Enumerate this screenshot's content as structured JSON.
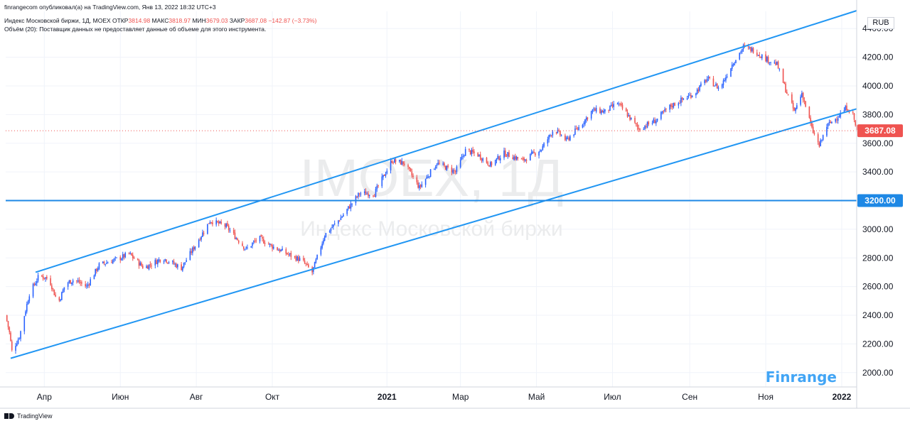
{
  "header": {
    "published": "finrangecom опубликовал(а) на TradingView.com, Янв 13, 2022 18:32 UTC+3",
    "symbol": "Индекс Московской биржи, 1Д, MOEX",
    "open_label": "ОТКР",
    "open_value": "3814.98",
    "high_label": "МАКС",
    "high_value": "3818.97",
    "low_label": "МИН",
    "low_value": "3679.03",
    "close_label": "ЗАКР",
    "close_value": "3687.08",
    "change": "−142.87 (−3.73%)",
    "volume_note": "Объём (20): Поставщик данных не предоставляет данные об объеме для этого инструмента."
  },
  "currency": "RUB",
  "watermark": {
    "ticker": "IMOEX, 1Д",
    "name": "Индекс Московской биржи"
  },
  "brand": "Finrange",
  "footer": "TradingView",
  "colors": {
    "up": "#2962ff",
    "down": "#ef5350",
    "line": "#2196f3",
    "hline": "#1e88e5",
    "price": "#ef5350"
  },
  "chart_data": {
    "type": "candlestick",
    "title": "Индекс Московской биржи, 1Д, MOEX",
    "ylim": [
      1900,
      4520
    ],
    "y_ticks": [
      2000,
      2200,
      2400,
      2600,
      2800,
      3000,
      3200,
      3400,
      3600,
      3800,
      4000,
      4200,
      4400
    ],
    "x_range": [
      "2020-03-01",
      "2022-01-13"
    ],
    "x_ticks": [
      {
        "label": "Апр",
        "date": "2020-04-01"
      },
      {
        "label": "Июн",
        "date": "2020-06-01"
      },
      {
        "label": "Авг",
        "date": "2020-08-01"
      },
      {
        "label": "Окт",
        "date": "2020-10-01"
      },
      {
        "label": "2021",
        "date": "2021-01-01"
      },
      {
        "label": "Мар",
        "date": "2021-03-01"
      },
      {
        "label": "Май",
        "date": "2021-05-01"
      },
      {
        "label": "Июл",
        "date": "2021-07-01"
      },
      {
        "label": "Сен",
        "date": "2021-09-01"
      },
      {
        "label": "Ноя",
        "date": "2021-11-01"
      },
      {
        "label": "2022",
        "date": "2022-01-01"
      }
    ],
    "last_price": 3687.08,
    "last_price_label": "3687.08",
    "horizontal_level": 3200,
    "horizontal_level_label": "3200.00",
    "trend_channel": {
      "upper": [
        {
          "date": "2020-03-25",
          "value": 2700
        },
        {
          "date": "2022-01-13",
          "value": 4525
        }
      ],
      "lower": [
        {
          "date": "2020-03-05",
          "value": 2100
        },
        {
          "date": "2022-01-13",
          "value": 3840
        }
      ]
    },
    "price_path": [
      {
        "date": "2020-03-01",
        "value": 2400
      },
      {
        "date": "2020-03-04",
        "value": 2280
      },
      {
        "date": "2020-03-06",
        "value": 2150
      },
      {
        "date": "2020-03-12",
        "value": 2250
      },
      {
        "date": "2020-03-16",
        "value": 2400
      },
      {
        "date": "2020-03-20",
        "value": 2550
      },
      {
        "date": "2020-03-28",
        "value": 2680
      },
      {
        "date": "2020-04-05",
        "value": 2650
      },
      {
        "date": "2020-04-12",
        "value": 2480
      },
      {
        "date": "2020-04-18",
        "value": 2620
      },
      {
        "date": "2020-04-25",
        "value": 2650
      },
      {
        "date": "2020-05-05",
        "value": 2600
      },
      {
        "date": "2020-05-15",
        "value": 2750
      },
      {
        "date": "2020-06-01",
        "value": 2800
      },
      {
        "date": "2020-06-08",
        "value": 2830
      },
      {
        "date": "2020-06-20",
        "value": 2730
      },
      {
        "date": "2020-07-05",
        "value": 2800
      },
      {
        "date": "2020-07-20",
        "value": 2730
      },
      {
        "date": "2020-08-01",
        "value": 2900
      },
      {
        "date": "2020-08-12",
        "value": 3060
      },
      {
        "date": "2020-08-25",
        "value": 3020
      },
      {
        "date": "2020-09-10",
        "value": 2860
      },
      {
        "date": "2020-09-20",
        "value": 2940
      },
      {
        "date": "2020-10-01",
        "value": 2880
      },
      {
        "date": "2020-10-15",
        "value": 2820
      },
      {
        "date": "2020-10-25",
        "value": 2780
      },
      {
        "date": "2020-11-02",
        "value": 2700
      },
      {
        "date": "2020-11-12",
        "value": 2960
      },
      {
        "date": "2020-11-25",
        "value": 3080
      },
      {
        "date": "2020-12-10",
        "value": 3250
      },
      {
        "date": "2020-12-22",
        "value": 3250
      },
      {
        "date": "2021-01-05",
        "value": 3480
      },
      {
        "date": "2021-01-15",
        "value": 3460
      },
      {
        "date": "2021-01-27",
        "value": 3290
      },
      {
        "date": "2021-02-10",
        "value": 3460
      },
      {
        "date": "2021-02-25",
        "value": 3400
      },
      {
        "date": "2021-03-05",
        "value": 3550
      },
      {
        "date": "2021-03-15",
        "value": 3520
      },
      {
        "date": "2021-03-25",
        "value": 3450
      },
      {
        "date": "2021-04-05",
        "value": 3530
      },
      {
        "date": "2021-04-20",
        "value": 3480
      },
      {
        "date": "2021-05-05",
        "value": 3560
      },
      {
        "date": "2021-05-15",
        "value": 3700
      },
      {
        "date": "2021-05-25",
        "value": 3620
      },
      {
        "date": "2021-06-05",
        "value": 3720
      },
      {
        "date": "2021-06-15",
        "value": 3830
      },
      {
        "date": "2021-06-25",
        "value": 3820
      },
      {
        "date": "2021-07-05",
        "value": 3880
      },
      {
        "date": "2021-07-12",
        "value": 3810
      },
      {
        "date": "2021-07-22",
        "value": 3700
      },
      {
        "date": "2021-08-05",
        "value": 3760
      },
      {
        "date": "2021-08-15",
        "value": 3850
      },
      {
        "date": "2021-08-25",
        "value": 3900
      },
      {
        "date": "2021-09-05",
        "value": 3950
      },
      {
        "date": "2021-09-15",
        "value": 4050
      },
      {
        "date": "2021-09-25",
        "value": 3980
      },
      {
        "date": "2021-10-05",
        "value": 4150
      },
      {
        "date": "2021-10-14",
        "value": 4270
      },
      {
        "date": "2021-10-22",
        "value": 4250
      },
      {
        "date": "2021-11-01",
        "value": 4190
      },
      {
        "date": "2021-11-10",
        "value": 4150
      },
      {
        "date": "2021-11-18",
        "value": 3950
      },
      {
        "date": "2021-11-24",
        "value": 3820
      },
      {
        "date": "2021-11-30",
        "value": 3950
      },
      {
        "date": "2021-12-05",
        "value": 3800
      },
      {
        "date": "2021-12-08",
        "value": 3700
      },
      {
        "date": "2021-12-14",
        "value": 3580
      },
      {
        "date": "2021-12-20",
        "value": 3720
      },
      {
        "date": "2021-12-28",
        "value": 3780
      },
      {
        "date": "2022-01-05",
        "value": 3850
      },
      {
        "date": "2022-01-10",
        "value": 3800
      },
      {
        "date": "2022-01-13",
        "value": 3687
      }
    ]
  }
}
